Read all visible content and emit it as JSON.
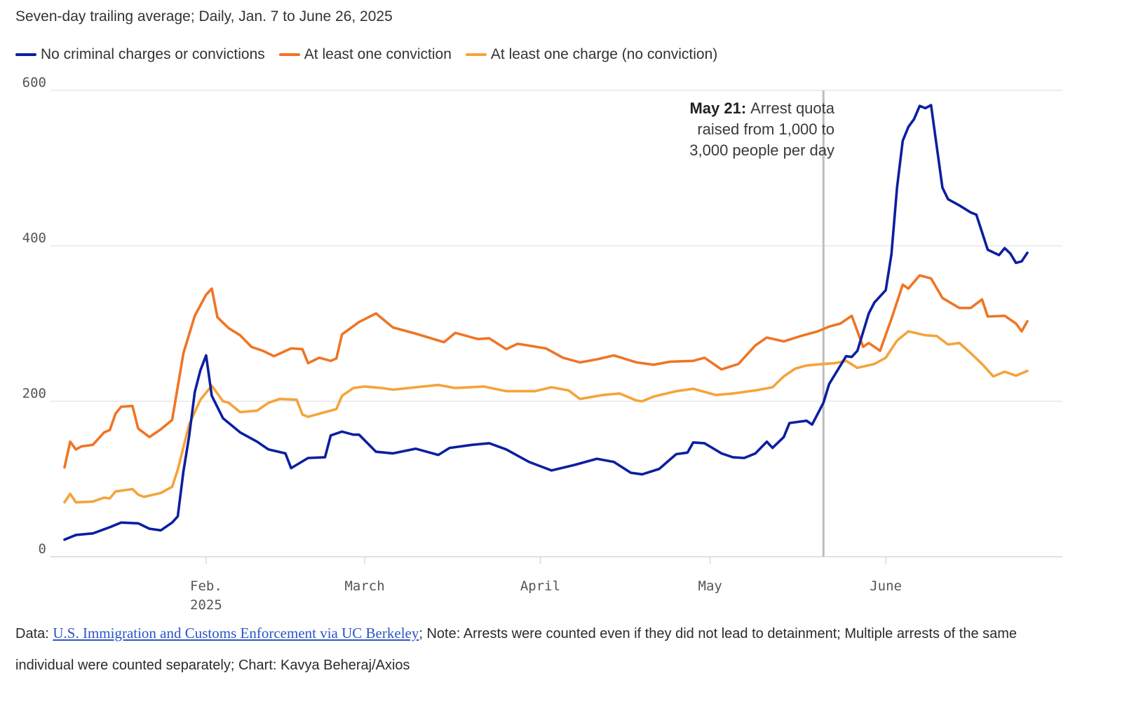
{
  "subtitle": "Seven-day trailing average; Daily, Jan. 7 to June 26, 2025",
  "legend": [
    {
      "label": "No criminal charges or convictions",
      "color": "#0b1fa0"
    },
    {
      "label": "At least one conviction",
      "color": "#ef7524"
    },
    {
      "label": "At least one charge (no conviction)",
      "color": "#f5a33a"
    }
  ],
  "annotation": {
    "date_label": "May 21:",
    "line1": "Arrest quota",
    "line2": "raised from 1,000 to",
    "line3": "3,000 people per day",
    "x": "2025-05-21"
  },
  "footer": {
    "data_prefix": "Data: ",
    "data_link": "U.S. Immigration and Customs Enforcement via UC Berkeley",
    "note": "; Note: Arrests were counted even if they did not lead to detainment; Multiple arrests of the same individual were counted separately; Chart: Kavya Beheraj/Axios"
  },
  "chart_data": {
    "type": "line",
    "xlabel": "",
    "ylabel": "",
    "x_range": [
      "2025-01-07",
      "2025-06-26"
    ],
    "ylim": [
      0,
      600
    ],
    "y_ticks": [
      "0",
      "200",
      "400",
      "600"
    ],
    "x_ticks": [
      {
        "date": "2025-02-01",
        "label": "Feb.",
        "sublabel": "2025"
      },
      {
        "date": "2025-03-01",
        "label": "March",
        "sublabel": ""
      },
      {
        "date": "2025-04-01",
        "label": "April",
        "sublabel": ""
      },
      {
        "date": "2025-05-01",
        "label": "May",
        "sublabel": ""
      },
      {
        "date": "2025-06-01",
        "label": "June",
        "sublabel": ""
      }
    ],
    "grid": true,
    "legend_position": "top",
    "series": [
      {
        "name": "No criminal charges or convictions",
        "color": "#0b1fa0",
        "points": [
          [
            "2025-01-07",
            22
          ],
          [
            "2025-01-09",
            28
          ],
          [
            "2025-01-12",
            30
          ],
          [
            "2025-01-15",
            38
          ],
          [
            "2025-01-17",
            44
          ],
          [
            "2025-01-20",
            43
          ],
          [
            "2025-01-22",
            36
          ],
          [
            "2025-01-24",
            34
          ],
          [
            "2025-01-26",
            44
          ],
          [
            "2025-01-27",
            52
          ],
          [
            "2025-01-28",
            110
          ],
          [
            "2025-01-29",
            155
          ],
          [
            "2025-01-30",
            212
          ],
          [
            "2025-01-31",
            240
          ],
          [
            "2025-02-01",
            259
          ],
          [
            "2025-02-02",
            207
          ],
          [
            "2025-02-04",
            178
          ],
          [
            "2025-02-07",
            160
          ],
          [
            "2025-02-10",
            148
          ],
          [
            "2025-02-12",
            138
          ],
          [
            "2025-02-15",
            133
          ],
          [
            "2025-02-16",
            114
          ],
          [
            "2025-02-19",
            127
          ],
          [
            "2025-02-22",
            128
          ],
          [
            "2025-02-23",
            156
          ],
          [
            "2025-02-25",
            161
          ],
          [
            "2025-02-27",
            157
          ],
          [
            "2025-02-28",
            157
          ],
          [
            "2025-03-03",
            135
          ],
          [
            "2025-03-06",
            133
          ],
          [
            "2025-03-10",
            139
          ],
          [
            "2025-03-14",
            131
          ],
          [
            "2025-03-16",
            140
          ],
          [
            "2025-03-20",
            144
          ],
          [
            "2025-03-23",
            146
          ],
          [
            "2025-03-26",
            138
          ],
          [
            "2025-03-30",
            122
          ],
          [
            "2025-04-03",
            111
          ],
          [
            "2025-04-07",
            118
          ],
          [
            "2025-04-11",
            126
          ],
          [
            "2025-04-14",
            122
          ],
          [
            "2025-04-17",
            108
          ],
          [
            "2025-04-19",
            106
          ],
          [
            "2025-04-22",
            113
          ],
          [
            "2025-04-25",
            132
          ],
          [
            "2025-04-27",
            134
          ],
          [
            "2025-04-28",
            147
          ],
          [
            "2025-04-30",
            146
          ],
          [
            "2025-05-03",
            133
          ],
          [
            "2025-05-05",
            128
          ],
          [
            "2025-05-07",
            127
          ],
          [
            "2025-05-09",
            133
          ],
          [
            "2025-05-11",
            148
          ],
          [
            "2025-05-12",
            140
          ],
          [
            "2025-05-14",
            154
          ],
          [
            "2025-05-15",
            172
          ],
          [
            "2025-05-18",
            175
          ],
          [
            "2025-05-19",
            170
          ],
          [
            "2025-05-21",
            198
          ],
          [
            "2025-05-22",
            222
          ],
          [
            "2025-05-25",
            258
          ],
          [
            "2025-05-26",
            257
          ],
          [
            "2025-05-27",
            265
          ],
          [
            "2025-05-29",
            313
          ],
          [
            "2025-05-30",
            327
          ],
          [
            "2025-06-01",
            343
          ],
          [
            "2025-06-02",
            389
          ],
          [
            "2025-06-03",
            475
          ],
          [
            "2025-06-04",
            535
          ],
          [
            "2025-06-05",
            553
          ],
          [
            "2025-06-06",
            563
          ],
          [
            "2025-06-07",
            580
          ],
          [
            "2025-06-08",
            577
          ],
          [
            "2025-06-09",
            581
          ],
          [
            "2025-06-11",
            475
          ],
          [
            "2025-06-12",
            460
          ],
          [
            "2025-06-14",
            452
          ],
          [
            "2025-06-16",
            443
          ],
          [
            "2025-06-17",
            440
          ],
          [
            "2025-06-19",
            395
          ],
          [
            "2025-06-21",
            388
          ],
          [
            "2025-06-22",
            397
          ],
          [
            "2025-06-23",
            390
          ],
          [
            "2025-06-24",
            378
          ],
          [
            "2025-06-25",
            380
          ],
          [
            "2025-06-26",
            391
          ]
        ]
      },
      {
        "name": "At least one conviction",
        "color": "#ef7524",
        "points": [
          [
            "2025-01-07",
            115
          ],
          [
            "2025-01-08",
            148
          ],
          [
            "2025-01-09",
            138
          ],
          [
            "2025-01-10",
            142
          ],
          [
            "2025-01-12",
            144
          ],
          [
            "2025-01-14",
            160
          ],
          [
            "2025-01-15",
            163
          ],
          [
            "2025-01-16",
            184
          ],
          [
            "2025-01-17",
            193
          ],
          [
            "2025-01-19",
            194
          ],
          [
            "2025-01-20",
            165
          ],
          [
            "2025-01-22",
            154
          ],
          [
            "2025-01-24",
            164
          ],
          [
            "2025-01-26",
            176
          ],
          [
            "2025-01-28",
            262
          ],
          [
            "2025-01-30",
            310
          ],
          [
            "2025-02-01",
            337
          ],
          [
            "2025-02-02",
            345
          ],
          [
            "2025-02-03",
            308
          ],
          [
            "2025-02-05",
            294
          ],
          [
            "2025-02-07",
            285
          ],
          [
            "2025-02-09",
            270
          ],
          [
            "2025-02-11",
            265
          ],
          [
            "2025-02-13",
            258
          ],
          [
            "2025-02-16",
            268
          ],
          [
            "2025-02-18",
            267
          ],
          [
            "2025-02-19",
            249
          ],
          [
            "2025-02-21",
            256
          ],
          [
            "2025-02-23",
            252
          ],
          [
            "2025-02-24",
            255
          ],
          [
            "2025-02-25",
            286
          ],
          [
            "2025-02-28",
            302
          ],
          [
            "2025-03-03",
            313
          ],
          [
            "2025-03-06",
            295
          ],
          [
            "2025-03-10",
            287
          ],
          [
            "2025-03-15",
            276
          ],
          [
            "2025-03-17",
            288
          ],
          [
            "2025-03-21",
            280
          ],
          [
            "2025-03-23",
            281
          ],
          [
            "2025-03-26",
            267
          ],
          [
            "2025-03-28",
            274
          ],
          [
            "2025-04-02",
            268
          ],
          [
            "2025-04-05",
            256
          ],
          [
            "2025-04-08",
            250
          ],
          [
            "2025-04-11",
            254
          ],
          [
            "2025-04-14",
            259
          ],
          [
            "2025-04-18",
            250
          ],
          [
            "2025-04-21",
            247
          ],
          [
            "2025-04-24",
            251
          ],
          [
            "2025-04-28",
            252
          ],
          [
            "2025-04-30",
            256
          ],
          [
            "2025-05-03",
            241
          ],
          [
            "2025-05-06",
            248
          ],
          [
            "2025-05-09",
            272
          ],
          [
            "2025-05-11",
            282
          ],
          [
            "2025-05-14",
            277
          ],
          [
            "2025-05-17",
            284
          ],
          [
            "2025-05-20",
            290
          ],
          [
            "2025-05-22",
            296
          ],
          [
            "2025-05-24",
            300
          ],
          [
            "2025-05-26",
            310
          ],
          [
            "2025-05-28",
            270
          ],
          [
            "2025-05-29",
            275
          ],
          [
            "2025-05-31",
            265
          ],
          [
            "2025-06-02",
            306
          ],
          [
            "2025-06-04",
            350
          ],
          [
            "2025-06-05",
            345
          ],
          [
            "2025-06-07",
            362
          ],
          [
            "2025-06-09",
            358
          ],
          [
            "2025-06-11",
            333
          ],
          [
            "2025-06-14",
            320
          ],
          [
            "2025-06-16",
            320
          ],
          [
            "2025-06-18",
            331
          ],
          [
            "2025-06-19",
            309
          ],
          [
            "2025-06-22",
            310
          ],
          [
            "2025-06-24",
            300
          ],
          [
            "2025-06-25",
            290
          ],
          [
            "2025-06-26",
            303
          ]
        ]
      },
      {
        "name": "At least one charge (no conviction)",
        "color": "#f5a33a",
        "points": [
          [
            "2025-01-07",
            70
          ],
          [
            "2025-01-08",
            81
          ],
          [
            "2025-01-09",
            70
          ],
          [
            "2025-01-12",
            71
          ],
          [
            "2025-01-14",
            76
          ],
          [
            "2025-01-15",
            75
          ],
          [
            "2025-01-16",
            84
          ],
          [
            "2025-01-19",
            87
          ],
          [
            "2025-01-20",
            80
          ],
          [
            "2025-01-21",
            77
          ],
          [
            "2025-01-24",
            82
          ],
          [
            "2025-01-26",
            90
          ],
          [
            "2025-01-27",
            112
          ],
          [
            "2025-01-29",
            170
          ],
          [
            "2025-01-31",
            202
          ],
          [
            "2025-02-02",
            220
          ],
          [
            "2025-02-04",
            200
          ],
          [
            "2025-02-05",
            198
          ],
          [
            "2025-02-07",
            186
          ],
          [
            "2025-02-10",
            188
          ],
          [
            "2025-02-12",
            198
          ],
          [
            "2025-02-14",
            203
          ],
          [
            "2025-02-17",
            202
          ],
          [
            "2025-02-18",
            183
          ],
          [
            "2025-02-19",
            180
          ],
          [
            "2025-02-24",
            190
          ],
          [
            "2025-02-25",
            207
          ],
          [
            "2025-02-27",
            217
          ],
          [
            "2025-03-01",
            219
          ],
          [
            "2025-03-04",
            217
          ],
          [
            "2025-03-06",
            215
          ],
          [
            "2025-03-10",
            218
          ],
          [
            "2025-03-14",
            221
          ],
          [
            "2025-03-17",
            217
          ],
          [
            "2025-03-22",
            219
          ],
          [
            "2025-03-26",
            213
          ],
          [
            "2025-03-31",
            213
          ],
          [
            "2025-04-03",
            218
          ],
          [
            "2025-04-06",
            214
          ],
          [
            "2025-04-08",
            203
          ],
          [
            "2025-04-12",
            208
          ],
          [
            "2025-04-15",
            210
          ],
          [
            "2025-04-18",
            201
          ],
          [
            "2025-04-19",
            200
          ],
          [
            "2025-04-21",
            206
          ],
          [
            "2025-04-25",
            213
          ],
          [
            "2025-04-28",
            216
          ],
          [
            "2025-05-02",
            208
          ],
          [
            "2025-05-05",
            210
          ],
          [
            "2025-05-09",
            214
          ],
          [
            "2025-05-12",
            218
          ],
          [
            "2025-05-14",
            232
          ],
          [
            "2025-05-16",
            242
          ],
          [
            "2025-05-18",
            246
          ],
          [
            "2025-05-21",
            248
          ],
          [
            "2025-05-23",
            249
          ],
          [
            "2025-05-25",
            252
          ],
          [
            "2025-05-27",
            243
          ],
          [
            "2025-05-30",
            248
          ],
          [
            "2025-06-01",
            256
          ],
          [
            "2025-06-03",
            278
          ],
          [
            "2025-06-05",
            290
          ],
          [
            "2025-06-08",
            285
          ],
          [
            "2025-06-10",
            284
          ],
          [
            "2025-06-12",
            273
          ],
          [
            "2025-06-14",
            275
          ],
          [
            "2025-06-16",
            262
          ],
          [
            "2025-06-18",
            248
          ],
          [
            "2025-06-20",
            232
          ],
          [
            "2025-06-22",
            238
          ],
          [
            "2025-06-24",
            233
          ],
          [
            "2025-06-26",
            239
          ]
        ]
      }
    ]
  }
}
